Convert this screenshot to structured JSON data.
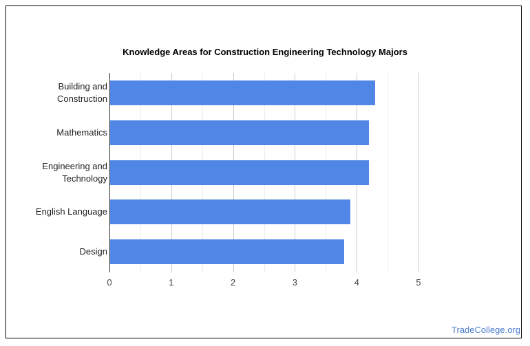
{
  "chart_data": {
    "type": "bar",
    "orientation": "horizontal",
    "title": "Knowledge Areas for Construction Engineering Technology Majors",
    "categories": [
      "Building and Construction",
      "Mathematics",
      "Engineering and Technology",
      "English Language",
      "Design"
    ],
    "category_lines": [
      [
        "Building and",
        "Construction"
      ],
      [
        "Mathematics"
      ],
      [
        "Engineering and",
        "Technology"
      ],
      [
        "English Language"
      ],
      [
        "Design"
      ]
    ],
    "values": [
      4.3,
      4.2,
      4.2,
      3.9,
      3.8
    ],
    "xlabel": "",
    "ylabel": "",
    "xlim": [
      0,
      5
    ],
    "xticks": [
      "0",
      "1",
      "2",
      "3",
      "4",
      "5"
    ],
    "grid": true,
    "legend": null,
    "bar_color": "#5086e5"
  },
  "footer": {
    "brand": "TradeCollege.org"
  }
}
